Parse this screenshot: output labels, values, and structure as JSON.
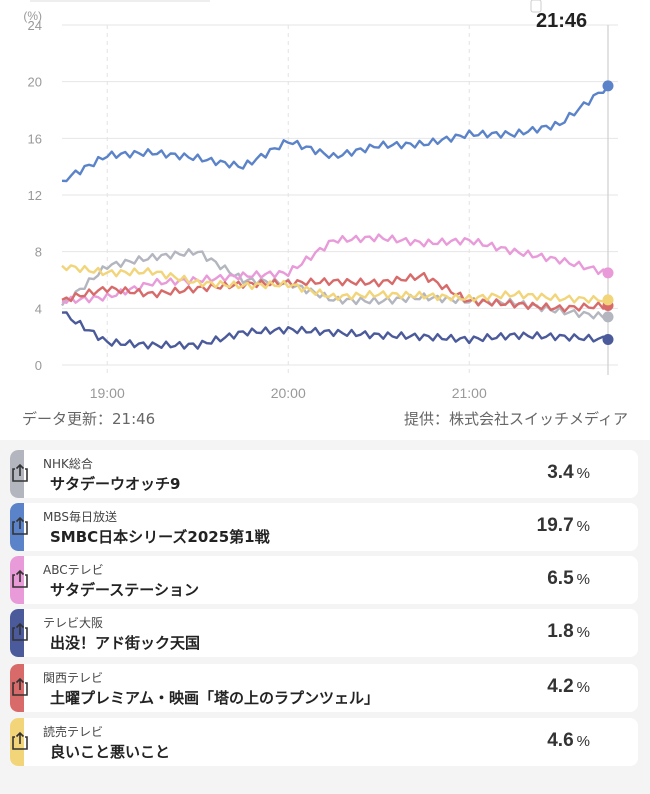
{
  "header": {
    "current_time": "21:46"
  },
  "footer": {
    "updated": "データ更新：21:46",
    "provider": "提供：株式会社スイッチメディア"
  },
  "chart_data": {
    "type": "line",
    "title": "",
    "ylabel": "(%)",
    "xlabel": "",
    "ylim": [
      0,
      24
    ],
    "yticks": [
      0,
      4,
      8,
      12,
      16,
      20,
      24
    ],
    "xticks": [
      "19:00",
      "20:00",
      "21:00"
    ],
    "x_range": [
      "18:45",
      "21:46"
    ],
    "grid": true,
    "x": [
      "18:45",
      "19:00",
      "19:15",
      "19:30",
      "19:45",
      "20:00",
      "20:15",
      "20:30",
      "20:45",
      "21:00",
      "21:15",
      "21:30",
      "21:46"
    ],
    "series": [
      {
        "name": "NHK総合",
        "color": "#b3b6bf",
        "values": [
          4.2,
          7.0,
          7.6,
          8.0,
          6.0,
          5.8,
          4.6,
          4.5,
          4.8,
          4.5,
          4.4,
          3.8,
          3.4
        ]
      },
      {
        "name": "MBS毎日放送",
        "color": "#5b83c9",
        "values": [
          13.0,
          14.8,
          15.0,
          14.6,
          14.0,
          15.8,
          14.7,
          15.5,
          15.6,
          16.3,
          16.3,
          17.0,
          19.7
        ]
      },
      {
        "name": "ABCテレビ",
        "color": "#e89ad9",
        "values": [
          4.5,
          4.8,
          5.8,
          6.0,
          6.3,
          6.5,
          8.8,
          9.0,
          8.6,
          8.8,
          8.0,
          7.4,
          6.5
        ]
      },
      {
        "name": "テレビ大阪",
        "color": "#4a5a9a",
        "values": [
          3.7,
          1.6,
          1.4,
          1.4,
          2.3,
          2.5,
          2.3,
          2.1,
          2.0,
          1.8,
          2.1,
          2.0,
          1.8
        ]
      },
      {
        "name": "関西テレビ",
        "color": "#d86a6a",
        "values": [
          4.6,
          5.4,
          5.0,
          5.4,
          5.7,
          5.8,
          5.9,
          5.8,
          6.3,
          4.5,
          4.3,
          4.0,
          4.2
        ]
      },
      {
        "name": "読売テレビ",
        "color": "#f2d479",
        "values": [
          7.0,
          6.5,
          6.6,
          5.8,
          5.6,
          5.7,
          4.8,
          5.0,
          4.9,
          4.7,
          5.0,
          4.7,
          4.6
        ]
      }
    ]
  },
  "programs": [
    {
      "station": "NHK総合",
      "title": "サタデーウオッチ9",
      "value": "3.4",
      "unit": "%",
      "color": "#b3b6bf"
    },
    {
      "station": "MBS毎日放送",
      "title": "SMBC日本シリーズ2025第1戦",
      "value": "19.7",
      "unit": "%",
      "color": "#5b83c9"
    },
    {
      "station": "ABCテレビ",
      "title": "サタデーステーション",
      "value": "6.5",
      "unit": "%",
      "color": "#e89ad9"
    },
    {
      "station": "テレビ大阪",
      "title": "出没！アド街ック天国",
      "value": "1.8",
      "unit": "%",
      "color": "#4a5a9a"
    },
    {
      "station": "関西テレビ",
      "title": "土曜プレミアム・映画「塔の上のラプンツェル」",
      "value": "4.2",
      "unit": "%",
      "color": "#d86a6a"
    },
    {
      "station": "読売テレビ",
      "title": "良いこと悪いこと",
      "value": "4.6",
      "unit": "%",
      "color": "#f2d479"
    }
  ]
}
